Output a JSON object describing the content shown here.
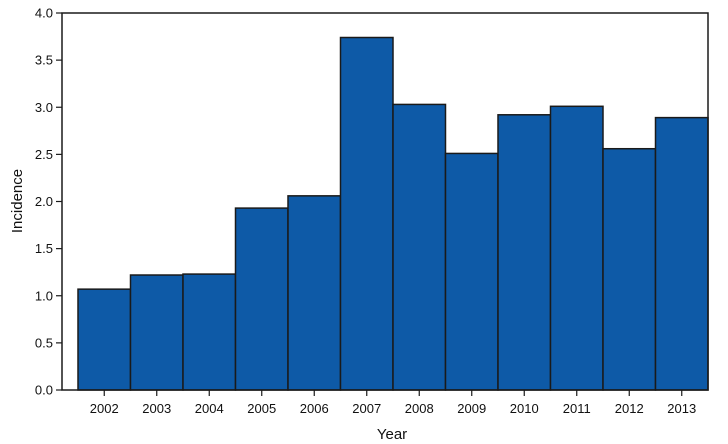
{
  "chart_data": {
    "type": "bar",
    "categories": [
      "2002",
      "2003",
      "2004",
      "2005",
      "2006",
      "2007",
      "2008",
      "2009",
      "2010",
      "2011",
      "2012",
      "2013"
    ],
    "values": [
      1.07,
      1.22,
      1.23,
      1.93,
      2.06,
      3.74,
      3.03,
      2.51,
      2.92,
      3.01,
      2.56,
      2.89
    ],
    "xlabel": "Year",
    "ylabel": "Incidence",
    "ylim": [
      0,
      4.0
    ],
    "yticks": [
      "0.0",
      "0.5",
      "1.0",
      "1.5",
      "2.0",
      "2.5",
      "3.0",
      "3.5",
      "4.0"
    ],
    "bar_color": "#0e5aa7",
    "grid": false,
    "legend": "none"
  }
}
